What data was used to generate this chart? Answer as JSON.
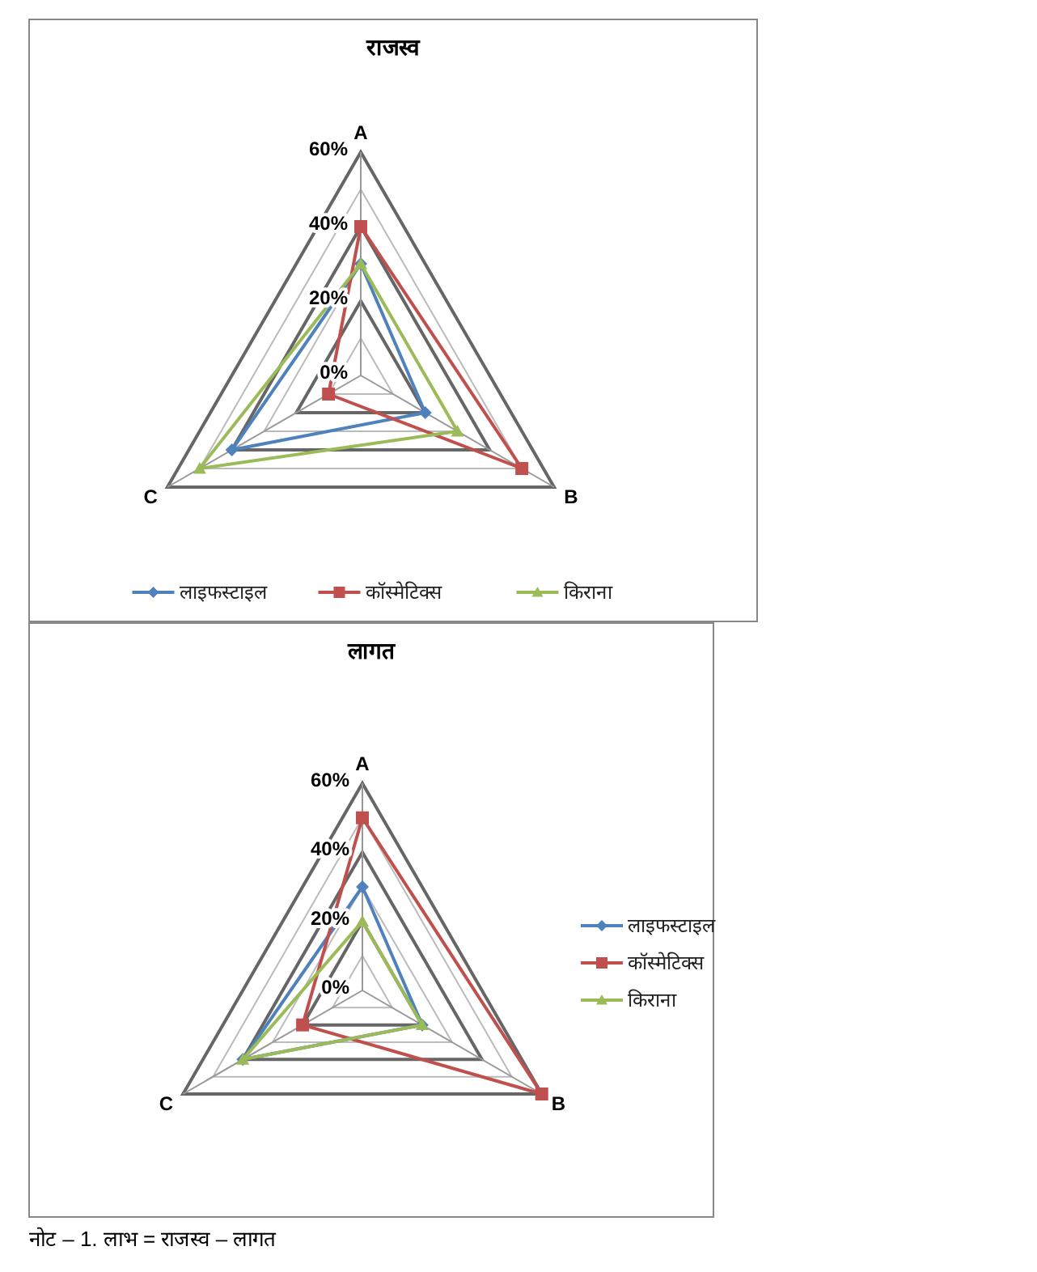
{
  "chart_data": [
    {
      "type": "radar",
      "title": "राजस्व",
      "categories": [
        "A",
        "B",
        "C"
      ],
      "ylim": [
        0,
        60
      ],
      "yticks": [
        {
          "value": 0,
          "label": "0%"
        },
        {
          "value": 20,
          "label": "20%"
        },
        {
          "value": 40,
          "label": "40%"
        },
        {
          "value": 60,
          "label": "60%"
        }
      ],
      "legend": "bottom",
      "series": [
        {
          "name": "लाइफस्टाइल",
          "color": "#4f81bd",
          "marker": "diamond",
          "values": [
            30,
            20,
            40
          ]
        },
        {
          "name": "कॉस्मेटिक्स",
          "color": "#c0504d",
          "marker": "square",
          "values": [
            40,
            50,
            10
          ]
        },
        {
          "name": "किराना",
          "color": "#9bbb59",
          "marker": "triangle",
          "values": [
            30,
            30,
            50
          ]
        }
      ]
    },
    {
      "type": "radar",
      "title": "लागत",
      "categories": [
        "A",
        "B",
        "C"
      ],
      "ylim": [
        0,
        60
      ],
      "yticks": [
        {
          "value": 0,
          "label": "0%"
        },
        {
          "value": 20,
          "label": "20%"
        },
        {
          "value": 40,
          "label": "40%"
        },
        {
          "value": 60,
          "label": "60%"
        }
      ],
      "legend": "right",
      "annotations": [
        "नोट – 1. लाभ = राजस्व – लागत"
      ],
      "series": [
        {
          "name": "लाइफस्टाइल",
          "color": "#4f81bd",
          "marker": "diamond",
          "values": [
            30,
            20,
            40
          ]
        },
        {
          "name": "कॉस्मेटिक्स",
          "color": "#c0504d",
          "marker": "square",
          "values": [
            50,
            60,
            20
          ]
        },
        {
          "name": "किराना",
          "color": "#9bbb59",
          "marker": "triangle",
          "values": [
            20,
            20,
            40
          ]
        }
      ]
    }
  ]
}
